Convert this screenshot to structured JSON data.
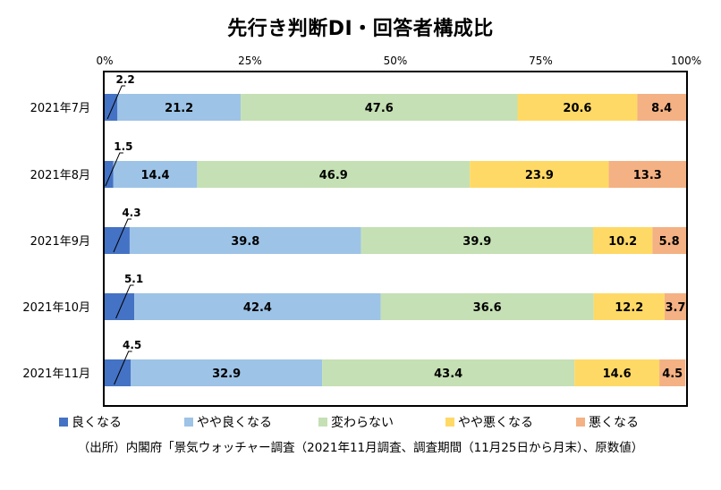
{
  "chart_data": {
    "type": "bar",
    "orientation": "horizontal",
    "stacked": "percent",
    "title": "先行き判断DI・回答者構成比",
    "xlim": [
      0,
      100
    ],
    "x_ticks": [
      "0%",
      "25%",
      "50%",
      "75%",
      "100%"
    ],
    "categories": [
      "2021年7月",
      "2021年8月",
      "2021年9月",
      "2021年10月",
      "2021年11月"
    ],
    "series": [
      {
        "name": "良くなる",
        "color": "#4472c4",
        "values": [
          2.2,
          1.5,
          4.3,
          5.1,
          4.5
        ],
        "labels": [
          "2.2",
          "1.5",
          "4.3",
          "5.1",
          "4.5"
        ]
      },
      {
        "name": "やや良くなる",
        "color": "#9dc3e6",
        "values": [
          21.2,
          14.4,
          39.8,
          42.4,
          32.9
        ],
        "labels": [
          "21.2",
          "14.4",
          "39.8",
          "42.4",
          "32.9"
        ]
      },
      {
        "name": "変わらない",
        "color": "#c5e0b4",
        "values": [
          47.6,
          46.9,
          39.9,
          36.6,
          43.4
        ],
        "labels": [
          "47.6",
          "46.9",
          "39.9",
          "36.6",
          "43.4"
        ]
      },
      {
        "name": "やや悪くなる",
        "color": "#ffd966",
        "values": [
          20.6,
          23.9,
          10.2,
          12.2,
          14.6
        ],
        "labels": [
          "20.6",
          "23.9",
          "10.2",
          "12.2",
          "14.6"
        ]
      },
      {
        "name": "悪くなる",
        "color": "#f4b183",
        "values": [
          8.4,
          13.3,
          5.8,
          3.7,
          4.5
        ],
        "labels": [
          "8.4",
          "13.3",
          "5.8",
          "3.7",
          "4.5"
        ]
      }
    ],
    "legend_position": "bottom",
    "grid": false
  },
  "source_note": "（出所）内閣府「景気ウォッチャー調査（2021年11月調査、調査期間（11月25日から月末）、原数値）"
}
